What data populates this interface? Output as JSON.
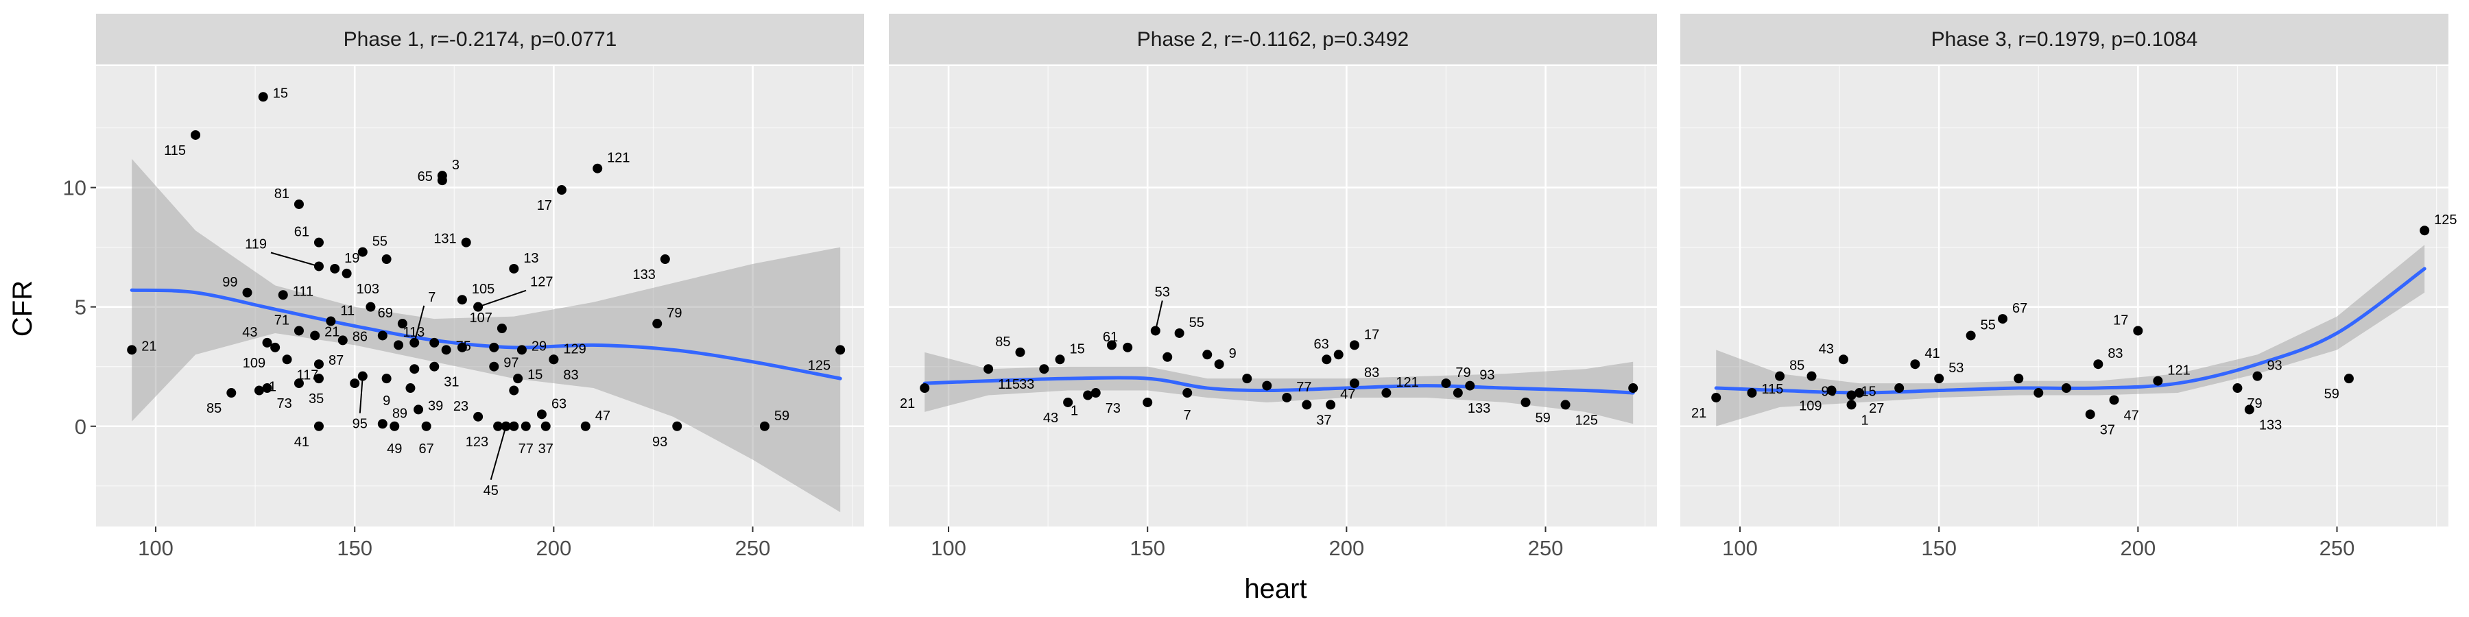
{
  "chart_data": {
    "type": "scatter",
    "xlabel": "heart",
    "ylabel": "CFR",
    "xlim": [
      85,
      278
    ],
    "ylim": [
      -4.2,
      15.1
    ],
    "x_ticks": [
      100,
      150,
      200,
      250
    ],
    "y_ticks": [
      0,
      5,
      10
    ],
    "grid": true,
    "colors": {
      "panel_bg": "#ebebeb",
      "grid": "#ffffff",
      "strip_bg": "#d9d9d9",
      "point": "#000000",
      "smooth_line": "#3366ff",
      "ribbon": "#999999"
    },
    "panels": [
      {
        "strip": "Phase 1, r=-0.2174, p=0.0771",
        "points": [
          [
            94,
            3.2,
            "21",
            "r"
          ],
          [
            110,
            12.2,
            "115",
            "bl"
          ],
          [
            127,
            13.8,
            "15",
            "r"
          ],
          [
            136,
            9.3,
            "81",
            "tl"
          ],
          [
            141,
            7.7,
            "61",
            "tl"
          ],
          [
            145,
            6.6,
            "19",
            "tr"
          ],
          [
            148,
            6.4,
            "103",
            "br"
          ],
          [
            152,
            7.3,
            "55",
            "tr"
          ],
          [
            141,
            6.7,
            "119",
            "lf"
          ],
          [
            158,
            7.0,
            "",
            ""
          ],
          [
            172,
            10.3,
            "65",
            "l"
          ],
          [
            172,
            10.5,
            "3",
            "tr"
          ],
          [
            202,
            9.9,
            "17",
            "bl"
          ],
          [
            211,
            10.8,
            "121",
            "tr"
          ],
          [
            178,
            7.7,
            "131",
            "l"
          ],
          [
            190,
            6.6,
            "13",
            "tr"
          ],
          [
            228,
            7.0,
            "133",
            "bl"
          ],
          [
            123,
            5.6,
            "99",
            "tl"
          ],
          [
            132,
            5.5,
            "111",
            "r"
          ],
          [
            144,
            4.4,
            "11",
            "tr"
          ],
          [
            154,
            5.0,
            "",
            ""
          ],
          [
            162,
            4.3,
            "69",
            "tl"
          ],
          [
            177,
            5.3,
            "105",
            "tr"
          ],
          [
            181,
            5.0,
            "127",
            "rf"
          ],
          [
            187,
            4.1,
            "107",
            "tl"
          ],
          [
            226,
            4.3,
            "79",
            "tr"
          ],
          [
            136,
            4.0,
            "71",
            "tl"
          ],
          [
            140,
            3.8,
            "21",
            "r"
          ],
          [
            147,
            3.6,
            "86",
            "r"
          ],
          [
            157,
            3.8,
            "",
            ""
          ],
          [
            161,
            3.4,
            "",
            ""
          ],
          [
            165,
            3.5,
            "7",
            "lft"
          ],
          [
            170,
            3.5,
            "113",
            "tl"
          ],
          [
            173,
            3.2,
            "75",
            "r"
          ],
          [
            177,
            3.3,
            "",
            ""
          ],
          [
            185,
            3.3,
            "",
            ""
          ],
          [
            192,
            3.2,
            "29",
            "r"
          ],
          [
            200,
            2.8,
            "129",
            "tr"
          ],
          [
            200,
            2.8,
            "83",
            "br"
          ],
          [
            128,
            3.5,
            "43",
            "tl"
          ],
          [
            130,
            3.3,
            "109",
            "bl"
          ],
          [
            133,
            2.8,
            "117",
            "br"
          ],
          [
            141,
            2.6,
            "87",
            "r"
          ],
          [
            158,
            2.0,
            "9",
            "b"
          ],
          [
            152,
            2.1,
            "95",
            "lfb"
          ],
          [
            165,
            2.4,
            "",
            ""
          ],
          [
            170,
            2.5,
            "31",
            "br"
          ],
          [
            185,
            2.5,
            "97",
            "r"
          ],
          [
            191,
            2.0,
            "15",
            "r"
          ],
          [
            126,
            1.5,
            "1",
            "r"
          ],
          [
            119,
            1.4,
            "85",
            "bl"
          ],
          [
            128,
            1.6,
            "73",
            "br"
          ],
          [
            136,
            1.8,
            "35",
            "br"
          ],
          [
            141,
            2.0,
            "",
            ""
          ],
          [
            150,
            1.8,
            "",
            ""
          ],
          [
            164,
            1.6,
            "",
            ""
          ],
          [
            190,
            1.5,
            "",
            ""
          ],
          [
            197,
            0.5,
            "63",
            "tr"
          ],
          [
            141,
            0.0,
            "41",
            "bl"
          ],
          [
            157,
            0.1,
            "89",
            "tr"
          ],
          [
            166,
            0.7,
            "39",
            "r"
          ],
          [
            168,
            0.0,
            "67",
            "b"
          ],
          [
            160,
            0.0,
            "49",
            "b"
          ],
          [
            181,
            0.4,
            "23",
            "tl"
          ],
          [
            186,
            0.0,
            "123",
            "bl"
          ],
          [
            188,
            0.0,
            "45",
            "lfd"
          ],
          [
            190,
            0.0,
            "",
            ""
          ],
          [
            193,
            0.0,
            "77",
            "b"
          ],
          [
            198,
            0.0,
            "37",
            "b"
          ],
          [
            208,
            0.0,
            "47",
            "tr"
          ],
          [
            231,
            0.0,
            "93",
            "bl"
          ],
          [
            253,
            0.0,
            "59",
            "tr"
          ],
          [
            272,
            3.2,
            "125",
            "bl"
          ]
        ],
        "smooth": [
          [
            94,
            5.7
          ],
          [
            110,
            5.6
          ],
          [
            130,
            4.9
          ],
          [
            150,
            4.2
          ],
          [
            170,
            3.6
          ],
          [
            190,
            3.3
          ],
          [
            210,
            3.4
          ],
          [
            230,
            3.2
          ],
          [
            250,
            2.7
          ],
          [
            272,
            2.0
          ]
        ],
        "band": [
          [
            94,
            11.2,
            0.2
          ],
          [
            110,
            8.2,
            3.0
          ],
          [
            130,
            5.9,
            3.9
          ],
          [
            150,
            5.0,
            3.4
          ],
          [
            170,
            4.5,
            2.7
          ],
          [
            190,
            4.6,
            2.0
          ],
          [
            210,
            5.2,
            1.6
          ],
          [
            230,
            6.0,
            0.4
          ],
          [
            250,
            6.8,
            -1.4
          ],
          [
            272,
            7.5,
            -3.6
          ]
        ]
      },
      {
        "strip": "Phase 2, r=-0.1162, p=0.3492",
        "points": [
          [
            94,
            1.6,
            "21",
            "bl"
          ],
          [
            110,
            2.4,
            "115",
            "br"
          ],
          [
            118,
            3.1,
            "85",
            "tl"
          ],
          [
            124,
            2.4,
            "33",
            "bl"
          ],
          [
            128,
            2.8,
            "15",
            "tr"
          ],
          [
            130,
            1.0,
            "43",
            "bl"
          ],
          [
            135,
            1.3,
            "1",
            "bl"
          ],
          [
            137,
            1.4,
            "73",
            "br"
          ],
          [
            141,
            3.4,
            "",
            ""
          ],
          [
            145,
            3.3,
            "61",
            "tl"
          ],
          [
            150,
            1.0,
            "",
            ""
          ],
          [
            152,
            4.0,
            "53",
            "lfu"
          ],
          [
            155,
            2.9,
            "",
            ""
          ],
          [
            158,
            3.9,
            "55",
            "tr"
          ],
          [
            160,
            1.4,
            "7",
            "b"
          ],
          [
            165,
            3.0,
            "",
            ""
          ],
          [
            168,
            2.6,
            "9",
            "tr"
          ],
          [
            175,
            2.0,
            "",
            ""
          ],
          [
            180,
            1.7,
            "",
            ""
          ],
          [
            185,
            1.2,
            "77",
            "tr"
          ],
          [
            190,
            0.9,
            "37",
            "br"
          ],
          [
            195,
            2.8,
            "",
            ""
          ],
          [
            198,
            3.0,
            "63",
            "tl"
          ],
          [
            202,
            3.4,
            "17",
            "tr"
          ],
          [
            202,
            1.8,
            "83",
            "tr"
          ],
          [
            196,
            0.9,
            "47",
            "tr"
          ],
          [
            210,
            1.4,
            "121",
            "tr"
          ],
          [
            225,
            1.8,
            "79",
            "tr"
          ],
          [
            231,
            1.7,
            "93",
            "tr"
          ],
          [
            228,
            1.4,
            "133",
            "br"
          ],
          [
            245,
            1.0,
            "59",
            "br"
          ],
          [
            255,
            0.9,
            "125",
            "br"
          ],
          [
            272,
            1.6,
            "",
            ""
          ]
        ],
        "smooth": [
          [
            94,
            1.8
          ],
          [
            110,
            1.9
          ],
          [
            130,
            2.0
          ],
          [
            150,
            2.0
          ],
          [
            165,
            1.6
          ],
          [
            180,
            1.5
          ],
          [
            200,
            1.6
          ],
          [
            220,
            1.7
          ],
          [
            240,
            1.6
          ],
          [
            260,
            1.5
          ],
          [
            272,
            1.4
          ]
        ],
        "band": [
          [
            94,
            3.1,
            0.6
          ],
          [
            110,
            2.4,
            1.3
          ],
          [
            130,
            2.5,
            1.5
          ],
          [
            150,
            2.5,
            1.5
          ],
          [
            165,
            2.0,
            1.2
          ],
          [
            180,
            2.0,
            1.0
          ],
          [
            200,
            2.0,
            1.2
          ],
          [
            220,
            2.1,
            1.2
          ],
          [
            240,
            2.2,
            1.0
          ],
          [
            260,
            2.4,
            0.6
          ],
          [
            272,
            2.7,
            0.1
          ]
        ]
      },
      {
        "strip": "Phase 3, r=0.1979, p=0.1084",
        "points": [
          [
            94,
            1.2,
            "21",
            "bl"
          ],
          [
            103,
            1.4,
            "115",
            "r"
          ],
          [
            110,
            2.1,
            "85",
            "tr"
          ],
          [
            118,
            2.1,
            "99",
            "br"
          ],
          [
            123,
            1.5,
            "109",
            "bl"
          ],
          [
            126,
            2.8,
            "43",
            "tl"
          ],
          [
            128,
            1.3,
            "15",
            "r"
          ],
          [
            130,
            1.4,
            "27",
            "br"
          ],
          [
            128,
            0.9,
            "1",
            "br"
          ],
          [
            140,
            1.6,
            "",
            ""
          ],
          [
            144,
            2.6,
            "41",
            "tr"
          ],
          [
            150,
            2.0,
            "53",
            "tr"
          ],
          [
            158,
            3.8,
            "55",
            "tr"
          ],
          [
            166,
            4.5,
            "67",
            "tr"
          ],
          [
            170,
            2.0,
            "",
            ""
          ],
          [
            175,
            1.4,
            "",
            ""
          ],
          [
            182,
            1.6,
            "",
            ""
          ],
          [
            188,
            0.5,
            "37",
            "br"
          ],
          [
            190,
            2.6,
            "83",
            "tr"
          ],
          [
            194,
            1.1,
            "47",
            "br"
          ],
          [
            200,
            4.0,
            "17",
            "tl"
          ],
          [
            205,
            1.9,
            "121",
            "tr"
          ],
          [
            225,
            1.6,
            "79",
            "br"
          ],
          [
            230,
            2.1,
            "93",
            "tr"
          ],
          [
            228,
            0.7,
            "133",
            "br"
          ],
          [
            253,
            2.0,
            "59",
            "bl"
          ],
          [
            272,
            8.2,
            "125",
            "tr"
          ]
        ],
        "smooth": [
          [
            94,
            1.6
          ],
          [
            110,
            1.5
          ],
          [
            130,
            1.4
          ],
          [
            150,
            1.5
          ],
          [
            170,
            1.6
          ],
          [
            190,
            1.6
          ],
          [
            210,
            1.8
          ],
          [
            230,
            2.6
          ],
          [
            250,
            3.9
          ],
          [
            272,
            6.6
          ]
        ],
        "band": [
          [
            94,
            3.2,
            0.0
          ],
          [
            110,
            2.2,
            0.8
          ],
          [
            130,
            1.8,
            1.0
          ],
          [
            150,
            1.8,
            1.2
          ],
          [
            170,
            1.9,
            1.3
          ],
          [
            190,
            1.9,
            1.3
          ],
          [
            210,
            2.2,
            1.4
          ],
          [
            230,
            3.0,
            2.2
          ],
          [
            250,
            4.6,
            3.2
          ],
          [
            272,
            7.6,
            5.6
          ]
        ]
      }
    ]
  }
}
